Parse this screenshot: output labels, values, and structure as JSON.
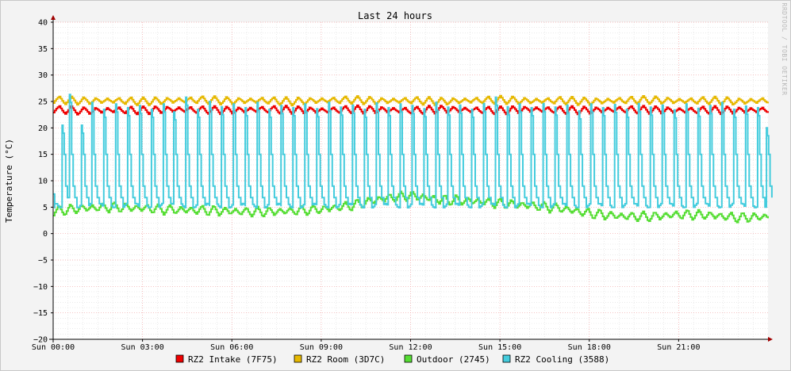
{
  "chart_data": {
    "type": "line",
    "title": "Last 24 hours",
    "ylabel": "Temperature (°C)",
    "watermark": "RRDTOOL / TOBI OETIKER",
    "ylim": [
      -20,
      40
    ],
    "y_ticks": [
      40,
      35,
      30,
      25,
      20,
      15,
      10,
      5,
      0,
      -5,
      -10,
      -15,
      -20
    ],
    "x_range_hours": [
      0,
      24
    ],
    "x_ticks": [
      {
        "hour": 0,
        "label": "Sun 00:00"
      },
      {
        "hour": 3,
        "label": "Sun 03:00"
      },
      {
        "hour": 6,
        "label": "Sun 06:00"
      },
      {
        "hour": 9,
        "label": "Sun 09:00"
      },
      {
        "hour": 12,
        "label": "Sun 12:00"
      },
      {
        "hour": 15,
        "label": "Sun 15:00"
      },
      {
        "hour": 18,
        "label": "Sun 18:00"
      },
      {
        "hour": 21,
        "label": "Sun 21:00"
      }
    ],
    "grid": true,
    "legend_position": "bottom",
    "series": [
      {
        "name": "RZ2 Intake (7F75)",
        "color": "#ee0000",
        "points": [
          [
            0,
            23.5
          ],
          [
            1,
            23.2
          ],
          [
            2,
            23.4
          ],
          [
            3,
            23.3
          ],
          [
            4,
            23.5
          ],
          [
            5,
            23.4
          ],
          [
            6,
            23.3
          ],
          [
            7,
            23.5
          ],
          [
            8,
            23.4
          ],
          [
            9,
            23.3
          ],
          [
            10,
            23.5
          ],
          [
            11,
            23.4
          ],
          [
            12,
            23.3
          ],
          [
            13,
            23.5
          ],
          [
            14,
            23.4
          ],
          [
            15,
            23.3
          ],
          [
            16,
            23.5
          ],
          [
            17,
            23.4
          ],
          [
            18,
            23.3
          ],
          [
            19,
            23.5
          ],
          [
            20,
            23.4
          ],
          [
            21,
            23.3
          ],
          [
            22,
            23.4
          ],
          [
            23,
            23.3
          ],
          [
            24,
            23.4
          ]
        ]
      },
      {
        "name": "RZ2 Room (3D7C)",
        "color": "#e6b800",
        "points": [
          [
            0,
            25.3
          ],
          [
            1,
            25.1
          ],
          [
            2,
            25.2
          ],
          [
            3,
            25.0
          ],
          [
            4,
            25.2
          ],
          [
            5,
            25.3
          ],
          [
            6,
            25.1
          ],
          [
            7,
            25.2
          ],
          [
            8,
            25.0
          ],
          [
            9,
            25.2
          ],
          [
            10,
            25.3
          ],
          [
            11,
            25.1
          ],
          [
            12,
            25.2
          ],
          [
            13,
            25.0
          ],
          [
            14,
            25.2
          ],
          [
            15,
            25.3
          ],
          [
            16,
            25.1
          ],
          [
            17,
            25.2
          ],
          [
            18,
            25.0
          ],
          [
            19,
            25.2
          ],
          [
            20,
            25.3
          ],
          [
            21,
            25.1
          ],
          [
            22,
            25.2
          ],
          [
            23,
            25.0
          ],
          [
            24,
            25.2
          ]
        ]
      },
      {
        "name": "Outdoor (2745)",
        "color": "#55dd33",
        "points": [
          [
            0,
            4.2
          ],
          [
            1,
            4.8
          ],
          [
            2,
            5.0
          ],
          [
            3,
            4.8
          ],
          [
            4,
            4.5
          ],
          [
            5,
            4.4
          ],
          [
            6,
            4.2
          ],
          [
            7,
            4.1
          ],
          [
            8,
            4.3
          ],
          [
            9,
            4.6
          ],
          [
            10,
            5.3
          ],
          [
            11,
            6.6
          ],
          [
            12,
            7.2
          ],
          [
            13,
            6.4
          ],
          [
            14,
            6.2
          ],
          [
            15,
            5.7
          ],
          [
            16,
            5.3
          ],
          [
            17,
            4.8
          ],
          [
            18,
            3.8
          ],
          [
            19,
            3.3
          ],
          [
            20,
            3.2
          ],
          [
            21,
            3.6
          ],
          [
            22,
            3.5
          ],
          [
            23,
            3.0
          ],
          [
            24,
            3.2
          ]
        ]
      },
      {
        "name": "RZ2 Cooling (3588)",
        "color": "#44ccdd",
        "baseline": 5.3,
        "peaks": [
          [
            0.3,
            20.5
          ],
          [
            0.55,
            26.3
          ],
          [
            0.95,
            20.5
          ],
          [
            1.3,
            24.8
          ],
          [
            1.7,
            23.5
          ],
          [
            2.1,
            24.5
          ],
          [
            2.5,
            23.8
          ],
          [
            2.9,
            24.2
          ],
          [
            3.3,
            23.5
          ],
          [
            3.7,
            24.5
          ],
          [
            4.05,
            23.0
          ],
          [
            4.45,
            25.8
          ],
          [
            4.85,
            23.5
          ],
          [
            5.25,
            25.0
          ],
          [
            5.65,
            24.0
          ],
          [
            6.05,
            24.5
          ],
          [
            6.45,
            23.8
          ],
          [
            6.85,
            24.8
          ],
          [
            7.25,
            23.5
          ],
          [
            7.65,
            24.2
          ],
          [
            8.05,
            23.8
          ],
          [
            8.45,
            24.5
          ],
          [
            8.85,
            23.6
          ],
          [
            9.25,
            24.8
          ],
          [
            9.65,
            23.9
          ],
          [
            10.05,
            24.3
          ],
          [
            10.45,
            23.5
          ],
          [
            10.85,
            24.7
          ],
          [
            11.25,
            23.8
          ],
          [
            11.65,
            24.5
          ],
          [
            12.05,
            24.2
          ],
          [
            12.45,
            23.6
          ],
          [
            12.85,
            24.8
          ],
          [
            13.25,
            23.9
          ],
          [
            13.65,
            24.3
          ],
          [
            14.05,
            23.5
          ],
          [
            14.45,
            24.6
          ],
          [
            14.85,
            25.8
          ],
          [
            15.25,
            24.0
          ],
          [
            15.65,
            24.5
          ],
          [
            16.05,
            23.8
          ],
          [
            16.45,
            24.6
          ],
          [
            16.85,
            23.9
          ],
          [
            17.25,
            24.3
          ],
          [
            17.65,
            23.2
          ],
          [
            18.05,
            24.5
          ],
          [
            18.45,
            23.8
          ],
          [
            18.85,
            24.4
          ],
          [
            19.25,
            23.5
          ],
          [
            19.65,
            24.6
          ],
          [
            20.05,
            23.9
          ],
          [
            20.45,
            24.3
          ],
          [
            20.85,
            23.4
          ],
          [
            21.25,
            24.5
          ],
          [
            21.65,
            23.7
          ],
          [
            22.05,
            24.2
          ],
          [
            22.45,
            24.8
          ],
          [
            22.85,
            23.5
          ],
          [
            23.25,
            24.1
          ],
          [
            23.65,
            23.8
          ],
          [
            23.95,
            20.0
          ]
        ]
      }
    ]
  }
}
